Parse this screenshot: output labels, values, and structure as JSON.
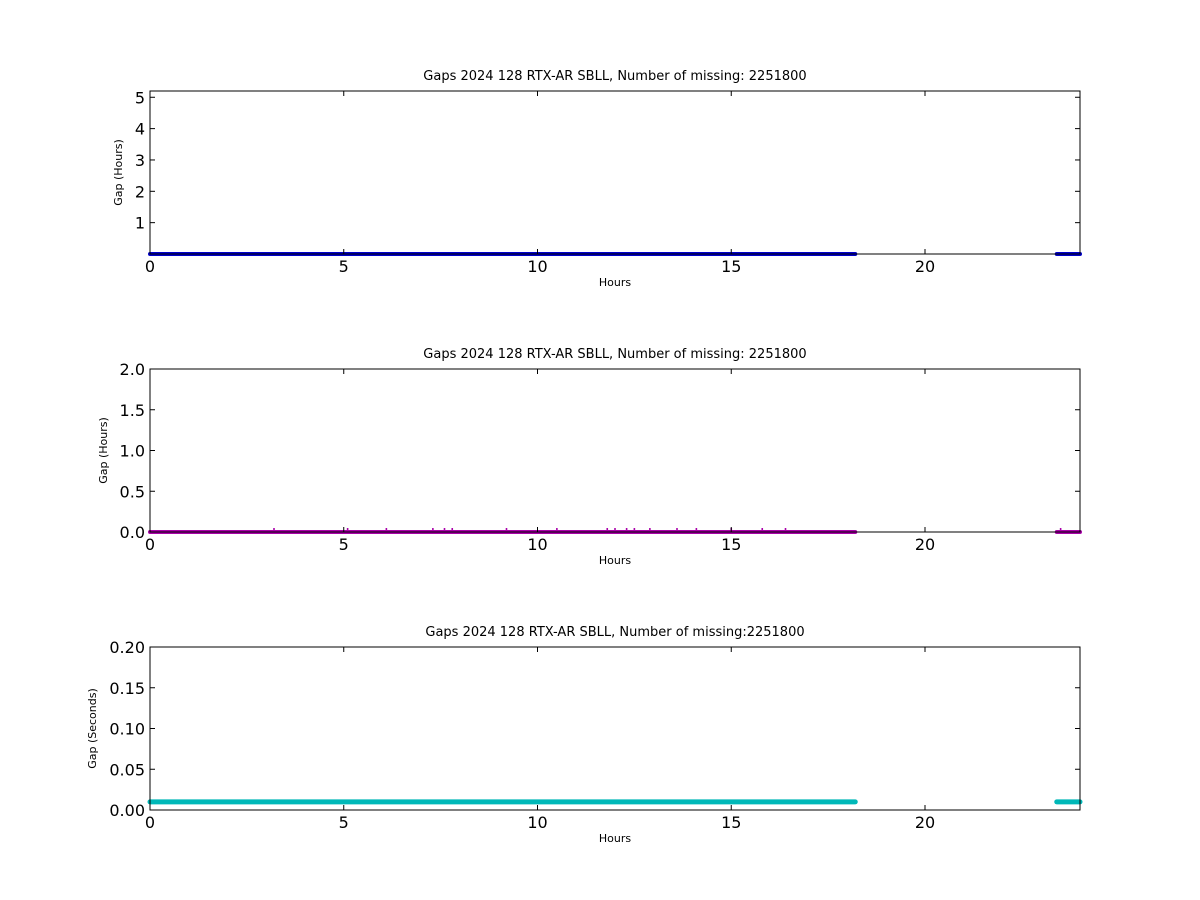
{
  "chart_data": [
    {
      "type": "line",
      "title": "Gaps 2024 128 RTX-AR  SBLL, Number of missing: 2251800",
      "xlabel": "Hours",
      "ylabel": "Gap (Hours)",
      "xlim": [
        0,
        24
      ],
      "ylim": [
        0,
        5.2
      ],
      "xticks": [
        0,
        5,
        10,
        15,
        20
      ],
      "yticks": [
        1,
        2,
        3,
        4,
        5
      ],
      "ytick_labels": [
        "1",
        "2",
        "3",
        "4",
        "5"
      ],
      "grid": false,
      "series": [
        {
          "color": "#0000cc",
          "segments": [
            [
              0,
              18.2
            ],
            [
              23.4,
              24
            ]
          ],
          "y": 0.0,
          "width": 4
        }
      ]
    },
    {
      "type": "line",
      "title": "Gaps 2024 128 RTX-AR  SBLL, Number of missing: 2251800",
      "xlabel": "Hours",
      "ylabel": "Gap (Hours)",
      "xlim": [
        0,
        24
      ],
      "ylim": [
        0,
        2.0
      ],
      "xticks": [
        0,
        5,
        10,
        15,
        20
      ],
      "yticks": [
        0.0,
        0.5,
        1.0,
        1.5,
        2.0
      ],
      "ytick_labels": [
        "0.0",
        "0.5",
        "1.0",
        "1.5",
        "2.0"
      ],
      "grid": false,
      "series": [
        {
          "color": "#aa00aa",
          "segments": [
            [
              0,
              18.2
            ],
            [
              23.4,
              24
            ]
          ],
          "y": 0.0,
          "width": 4,
          "spikes_x": [
            3.2,
            5.1,
            6.1,
            7.3,
            7.6,
            7.8,
            9.2,
            10.5,
            11.8,
            12.0,
            12.3,
            12.5,
            12.9,
            13.6,
            14.1,
            15.0,
            15.8,
            16.4,
            23.5
          ]
        }
      ]
    },
    {
      "type": "line",
      "title": "Gaps 2024 128 RTX-AR  SBLL, Number of missing:2251800",
      "xlabel": "Hours",
      "ylabel": "Gap (Seconds)",
      "xlim": [
        0,
        24
      ],
      "ylim": [
        0,
        0.2
      ],
      "xticks": [
        0,
        5,
        10,
        15,
        20
      ],
      "yticks": [
        0.0,
        0.05,
        0.1,
        0.15,
        0.2
      ],
      "ytick_labels": [
        "0.00",
        "0.05",
        "0.10",
        "0.15",
        "0.20"
      ],
      "grid": false,
      "series": [
        {
          "color": "#00b8b8",
          "segments": [
            [
              0,
              18.2
            ],
            [
              23.4,
              24
            ]
          ],
          "y": 0.01,
          "width": 5
        }
      ]
    }
  ]
}
